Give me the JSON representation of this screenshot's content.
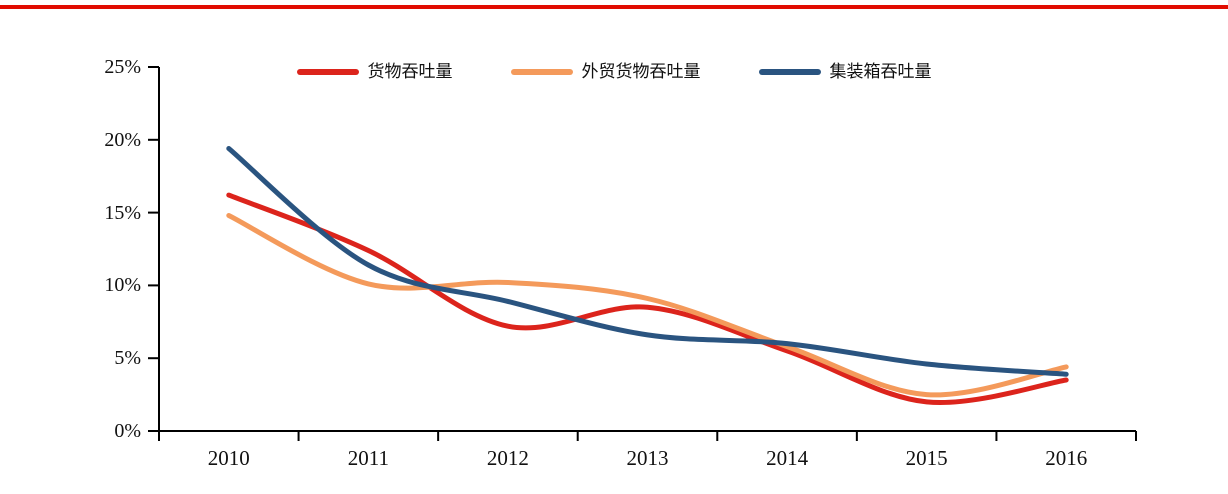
{
  "page": {
    "top_border_color": "#e10b00",
    "background": "#ffffff"
  },
  "chart_data": {
    "type": "line",
    "title": "",
    "xlabel": "",
    "ylabel": "",
    "categories": [
      "2010",
      "2011",
      "2012",
      "2013",
      "2014",
      "2015",
      "2016"
    ],
    "series": [
      {
        "name": "货物吞吐量",
        "color": "#dc241c",
        "values": [
          16.2,
          12.4,
          7.2,
          8.5,
          5.5,
          2.0,
          3.5
        ]
      },
      {
        "name": "外贸货物吞吐量",
        "color": "#f49a5b",
        "values": [
          14.8,
          10.1,
          10.2,
          9.1,
          5.8,
          2.5,
          4.4
        ]
      },
      {
        "name": "集装箱吞吐量",
        "color": "#2a5480",
        "values": [
          19.4,
          11.4,
          8.9,
          6.6,
          6.0,
          4.6,
          3.9
        ]
      }
    ],
    "ylim": [
      0,
      25
    ],
    "ytick_step": 5,
    "ytick_labels": [
      "0%",
      "5%",
      "10%",
      "15%",
      "20%",
      "25%"
    ],
    "grid": false,
    "legend_position": "top-center",
    "line_style": "smooth",
    "line_width": 5,
    "axis_color": "#000000",
    "text_color": "#111111"
  }
}
